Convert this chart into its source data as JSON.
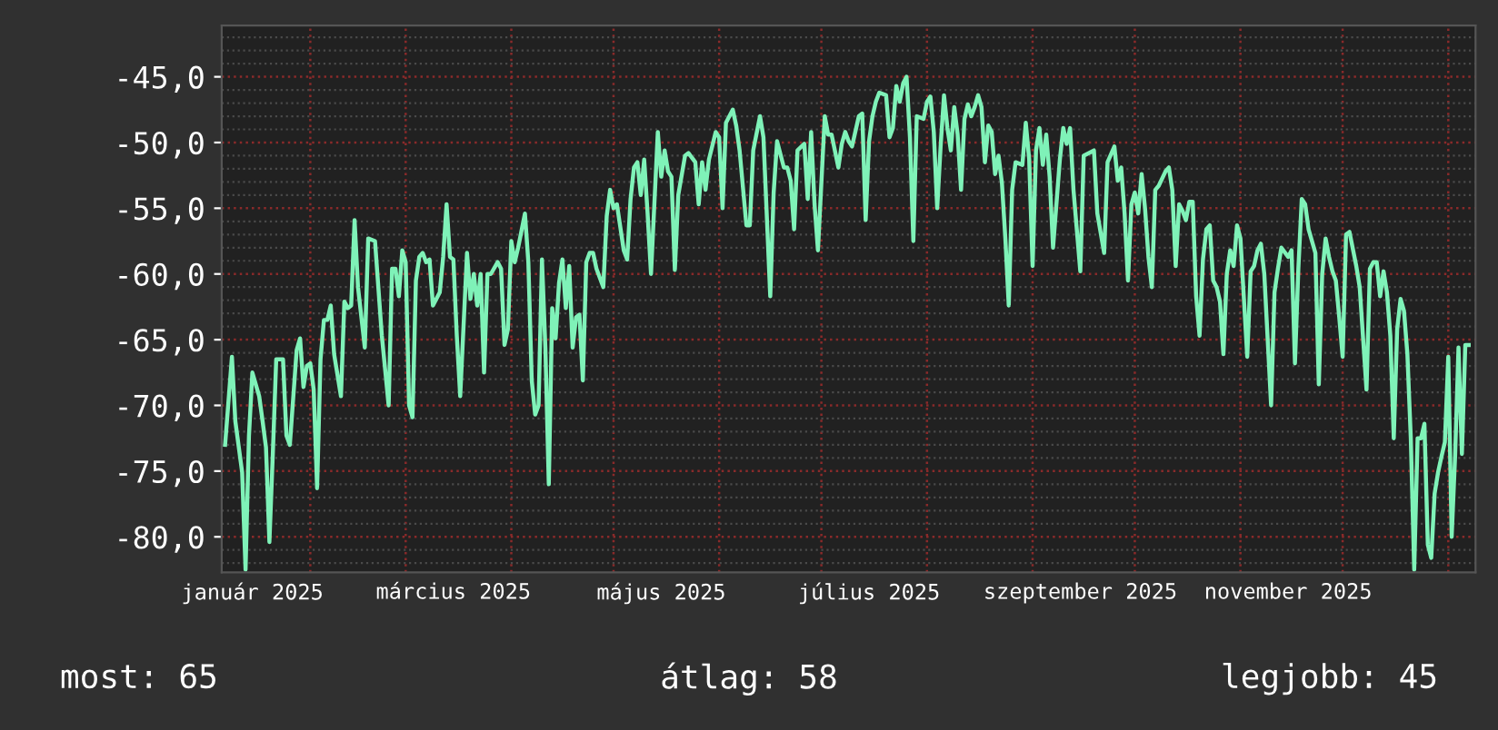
{
  "chart_data": {
    "type": "line",
    "series": [
      {
        "color": "#7ff2b8",
        "x": [
          "2025-01-07",
          "2025-01-09",
          "2025-01-10",
          "2025-01-12",
          "2025-01-13",
          "2025-01-14",
          "2025-01-15",
          "2025-01-17",
          "2025-01-18",
          "2025-01-19",
          "2025-01-20",
          "2025-01-21",
          "2025-01-22",
          "2025-01-24",
          "2025-01-25",
          "2025-01-26",
          "2025-01-28",
          "2025-01-29",
          "2025-01-30",
          "2025-01-31",
          "2025-02-01",
          "2025-02-02",
          "2025-02-03",
          "2025-02-04",
          "2025-02-05",
          "2025-02-06",
          "2025-02-07",
          "2025-02-08",
          "2025-02-10",
          "2025-02-11",
          "2025-02-12",
          "2025-02-13",
          "2025-02-14",
          "2025-02-15",
          "2025-02-17",
          "2025-02-18",
          "2025-02-20",
          "2025-02-22",
          "2025-02-24",
          "2025-02-25",
          "2025-02-26",
          "2025-02-27",
          "2025-02-28",
          "2025-03-01",
          "2025-03-02",
          "2025-03-03",
          "2025-03-04",
          "2025-03-05",
          "2025-03-06",
          "2025-03-07",
          "2025-03-08",
          "2025-03-09",
          "2025-03-11",
          "2025-03-12",
          "2025-03-13",
          "2025-03-14",
          "2025-03-15",
          "2025-03-16",
          "2025-03-17",
          "2025-03-19",
          "2025-03-20",
          "2025-03-21",
          "2025-03-22",
          "2025-03-23",
          "2025-03-24",
          "2025-03-25",
          "2025-03-26",
          "2025-03-28",
          "2025-03-29",
          "2025-03-30",
          "2025-03-31",
          "2025-04-01",
          "2025-04-02",
          "2025-04-03",
          "2025-04-05",
          "2025-04-06",
          "2025-04-07",
          "2025-04-08",
          "2025-04-09",
          "2025-04-10",
          "2025-04-11",
          "2025-04-12",
          "2025-04-13",
          "2025-04-14",
          "2025-04-15",
          "2025-04-16",
          "2025-04-17",
          "2025-04-18",
          "2025-04-19",
          "2025-04-20",
          "2025-04-21",
          "2025-04-22",
          "2025-04-23",
          "2025-04-24",
          "2025-04-25",
          "2025-04-26",
          "2025-04-28",
          "2025-04-29",
          "2025-04-30",
          "2025-05-01",
          "2025-05-02",
          "2025-05-04",
          "2025-05-05",
          "2025-05-06",
          "2025-05-07",
          "2025-05-08",
          "2025-05-09",
          "2025-05-10",
          "2025-05-11",
          "2025-05-12",
          "2025-05-14",
          "2025-05-15",
          "2025-05-16",
          "2025-05-17",
          "2025-05-18",
          "2025-05-19",
          "2025-05-20",
          "2025-05-22",
          "2025-05-23",
          "2025-05-25",
          "2025-05-26",
          "2025-05-27",
          "2025-05-28",
          "2025-05-29",
          "2025-05-31",
          "2025-06-01",
          "2025-06-02",
          "2025-06-03",
          "2025-06-05",
          "2025-06-06",
          "2025-06-07",
          "2025-06-09",
          "2025-06-10",
          "2025-06-11",
          "2025-06-13",
          "2025-06-14",
          "2025-06-16",
          "2025-06-17",
          "2025-06-18",
          "2025-06-20",
          "2025-06-21",
          "2025-06-22",
          "2025-06-23",
          "2025-06-24",
          "2025-06-26",
          "2025-06-27",
          "2025-06-28",
          "2025-06-29",
          "2025-06-30",
          "2025-07-02",
          "2025-07-03",
          "2025-07-04",
          "2025-07-06",
          "2025-07-07",
          "2025-07-08",
          "2025-07-09",
          "2025-07-10",
          "2025-07-12",
          "2025-07-13",
          "2025-07-14",
          "2025-07-15",
          "2025-07-16",
          "2025-07-17",
          "2025-07-18",
          "2025-07-20",
          "2025-07-21",
          "2025-07-22",
          "2025-07-23",
          "2025-07-24",
          "2025-07-25",
          "2025-07-26",
          "2025-07-27",
          "2025-07-28",
          "2025-07-29",
          "2025-07-31",
          "2025-08-01",
          "2025-08-02",
          "2025-08-03",
          "2025-08-04",
          "2025-08-05",
          "2025-08-06",
          "2025-08-07",
          "2025-08-08",
          "2025-08-09",
          "2025-08-10",
          "2025-08-11",
          "2025-08-12",
          "2025-08-13",
          "2025-08-14",
          "2025-08-15",
          "2025-08-16",
          "2025-08-17",
          "2025-08-18",
          "2025-08-19",
          "2025-08-20",
          "2025-08-21",
          "2025-08-22",
          "2025-08-23",
          "2025-08-24",
          "2025-08-25",
          "2025-08-26",
          "2025-08-27",
          "2025-08-29",
          "2025-08-30",
          "2025-08-31",
          "2025-09-01",
          "2025-09-02",
          "2025-09-03",
          "2025-09-04",
          "2025-09-05",
          "2025-09-06",
          "2025-09-07",
          "2025-09-09",
          "2025-09-10",
          "2025-09-11",
          "2025-09-12",
          "2025-09-13",
          "2025-09-15",
          "2025-09-16",
          "2025-09-19",
          "2025-09-20",
          "2025-09-22",
          "2025-09-23",
          "2025-09-25",
          "2025-09-26",
          "2025-09-27",
          "2025-09-28",
          "2025-09-29",
          "2025-09-30",
          "2025-10-01",
          "2025-10-02",
          "2025-10-03",
          "2025-10-04",
          "2025-10-05",
          "2025-10-06",
          "2025-10-07",
          "2025-10-08",
          "2025-10-10",
          "2025-10-11",
          "2025-10-12",
          "2025-10-13",
          "2025-10-14",
          "2025-10-15",
          "2025-10-16",
          "2025-10-17",
          "2025-10-18",
          "2025-10-19",
          "2025-10-20",
          "2025-10-21",
          "2025-10-22",
          "2025-10-23",
          "2025-10-24",
          "2025-10-25",
          "2025-10-26",
          "2025-10-27",
          "2025-10-28",
          "2025-10-29",
          "2025-10-30",
          "2025-10-31",
          "2025-11-01",
          "2025-11-03",
          "2025-11-04",
          "2025-11-05",
          "2025-11-06",
          "2025-11-07",
          "2025-11-08",
          "2025-11-10",
          "2025-11-11",
          "2025-11-12",
          "2025-11-13",
          "2025-11-15",
          "2025-11-16",
          "2025-11-17",
          "2025-11-18",
          "2025-11-19",
          "2025-11-20",
          "2025-11-21",
          "2025-11-22",
          "2025-11-23",
          "2025-11-24",
          "2025-11-25",
          "2025-11-26",
          "2025-11-27",
          "2025-11-28",
          "2025-11-29",
          "2025-11-30",
          "2025-12-01",
          "2025-12-02",
          "2025-12-03",
          "2025-12-05",
          "2025-12-06",
          "2025-12-07",
          "2025-12-08",
          "2025-12-09",
          "2025-12-10",
          "2025-12-11",
          "2025-12-12",
          "2025-12-13",
          "2025-12-14",
          "2025-12-15",
          "2025-12-16",
          "2025-12-17",
          "2025-12-18",
          "2025-12-19",
          "2025-12-20",
          "2025-12-21",
          "2025-12-22",
          "2025-12-23",
          "2025-12-24",
          "2025-12-25",
          "2025-12-26",
          "2025-12-27",
          "2025-12-28",
          "2025-12-29",
          "2025-12-30",
          "2025-12-31",
          "2026-01-01",
          "2026-01-02",
          "2026-01-03",
          "2026-01-04",
          "2026-01-05",
          "2026-01-06",
          "2026-01-07"
        ],
        "values": [
          -73.0,
          -66.3,
          -71.2,
          -75.1,
          -82.5,
          -72.3,
          -67.5,
          -69.3,
          -71.2,
          -73.2,
          -80.4,
          -73.7,
          -66.5,
          -66.5,
          -72.3,
          -73.0,
          -65.8,
          -64.9,
          -68.6,
          -67.0,
          -66.8,
          -68.8,
          -76.3,
          -66.5,
          -63.5,
          -63.5,
          -62.4,
          -66.1,
          -69.3,
          -62.1,
          -62.6,
          -62.4,
          -55.9,
          -61.0,
          -65.6,
          -57.3,
          -57.5,
          -64.7,
          -70.0,
          -59.6,
          -59.6,
          -61.7,
          -58.2,
          -59.1,
          -70.0,
          -70.9,
          -60.5,
          -58.7,
          -58.4,
          -59.1,
          -58.9,
          -62.4,
          -61.4,
          -58.7,
          -54.7,
          -58.7,
          -58.9,
          -64.7,
          -69.3,
          -58.4,
          -61.9,
          -60.0,
          -62.4,
          -60.0,
          -67.5,
          -60.0,
          -60.0,
          -59.1,
          -59.6,
          -65.4,
          -64.2,
          -57.5,
          -59.1,
          -58.0,
          -55.4,
          -59.1,
          -68.1,
          -70.7,
          -70.0,
          -58.9,
          -65.6,
          -76.0,
          -62.6,
          -64.9,
          -60.7,
          -58.9,
          -62.6,
          -59.4,
          -65.6,
          -63.3,
          -63.1,
          -68.1,
          -59.1,
          -58.4,
          -58.4,
          -59.6,
          -61.0,
          -55.6,
          -53.6,
          -55.0,
          -54.7,
          -58.2,
          -58.9,
          -54.3,
          -51.9,
          -51.5,
          -54.0,
          -51.3,
          -55.4,
          -60.0,
          -49.2,
          -52.6,
          -50.6,
          -52.2,
          -52.6,
          -59.7,
          -54.0,
          -51.0,
          -50.8,
          -51.5,
          -54.7,
          -51.5,
          -53.6,
          -51.3,
          -49.2,
          -49.6,
          -55.0,
          -48.5,
          -47.5,
          -48.7,
          -50.6,
          -56.3,
          -56.3,
          -50.6,
          -48.0,
          -49.6,
          -61.7,
          -53.8,
          -49.9,
          -51.9,
          -51.9,
          -52.9,
          -56.6,
          -50.6,
          -50.1,
          -54.3,
          -49.2,
          -54.7,
          -58.2,
          -48.0,
          -49.4,
          -49.4,
          -51.9,
          -50.1,
          -49.2,
          -49.9,
          -50.3,
          -48.0,
          -47.8,
          -55.9,
          -49.9,
          -48.0,
          -46.9,
          -46.2,
          -46.4,
          -49.6,
          -48.9,
          -45.7,
          -46.9,
          -45.5,
          -45.0,
          -49.6,
          -57.5,
          -48.0,
          -48.2,
          -46.9,
          -46.5,
          -49.2,
          -55.0,
          -50.3,
          -46.4,
          -48.9,
          -50.6,
          -47.3,
          -49.4,
          -53.6,
          -48.2,
          -47.1,
          -48.0,
          -47.3,
          -46.4,
          -47.3,
          -51.5,
          -48.7,
          -49.2,
          -52.4,
          -51.0,
          -53.1,
          -57.3,
          -62.4,
          -53.6,
          -51.5,
          -51.7,
          -48.5,
          -51.3,
          -59.4,
          -50.6,
          -48.9,
          -51.7,
          -49.4,
          -52.6,
          -58.0,
          -51.3,
          -48.9,
          -50.1,
          -48.9,
          -53.6,
          -59.8,
          -51.0,
          -50.6,
          -55.4,
          -58.4,
          -51.5,
          -50.3,
          -52.9,
          -51.9,
          -55.4,
          -60.5,
          -54.7,
          -53.8,
          -55.4,
          -52.4,
          -55.0,
          -58.7,
          -61.0,
          -53.6,
          -53.3,
          -52.2,
          -51.9,
          -53.6,
          -59.4,
          -54.7,
          -55.2,
          -55.9,
          -54.5,
          -54.5,
          -61.7,
          -64.7,
          -58.9,
          -56.6,
          -56.3,
          -60.5,
          -61.0,
          -62.1,
          -66.1,
          -60.0,
          -58.2,
          -59.4,
          -56.3,
          -57.3,
          -66.3,
          -59.8,
          -59.4,
          -58.2,
          -57.7,
          -60.0,
          -70.0,
          -61.4,
          -59.6,
          -58.0,
          -58.7,
          -58.2,
          -66.8,
          -59.6,
          -54.3,
          -54.7,
          -56.6,
          -57.5,
          -58.4,
          -68.4,
          -60.0,
          -57.3,
          -58.7,
          -59.8,
          -60.5,
          -63.3,
          -66.3,
          -57.0,
          -56.8,
          -59.4,
          -61.0,
          -64.9,
          -68.8,
          -59.6,
          -59.1,
          -59.1,
          -61.7,
          -59.8,
          -61.4,
          -64.7,
          -72.5,
          -64.2,
          -61.9,
          -62.8,
          -66.1,
          -72.5,
          -82.5,
          -72.5,
          -72.5,
          -71.4,
          -80.6,
          -81.6,
          -76.7,
          -75.1,
          -73.9,
          -72.8,
          -66.3,
          -80.0,
          -73.9,
          -65.6,
          -73.7,
          -65.4,
          -65.4
        ]
      }
    ],
    "xlim": [
      "2025-01-06",
      "2026-01-09"
    ],
    "xticks": [
      {
        "value": "2025-01-15",
        "label": "január 2025"
      },
      {
        "value": "2025-03-15",
        "label": "március 2025"
      },
      {
        "value": "2025-05-15",
        "label": "május 2025"
      },
      {
        "value": "2025-07-15",
        "label": "július 2025"
      },
      {
        "value": "2025-09-15",
        "label": "szeptember 2025"
      },
      {
        "value": "2025-11-15",
        "label": "november 2025"
      }
    ],
    "ylim": [
      -82.7,
      -41.1
    ],
    "yticks": [
      {
        "value": -45,
        "label": "-45,0"
      },
      {
        "value": -50,
        "label": "-50,0"
      },
      {
        "value": -55,
        "label": "-55,0"
      },
      {
        "value": -60,
        "label": "-60,0"
      },
      {
        "value": -65,
        "label": "-65,0"
      },
      {
        "value": -70,
        "label": "-70,0"
      },
      {
        "value": -75,
        "label": "-75,0"
      },
      {
        "value": -80,
        "label": "-80,0"
      }
    ],
    "grid": true,
    "annotations": [
      "most: 65",
      "átlag: 58",
      "legjobb: 45"
    ]
  }
}
